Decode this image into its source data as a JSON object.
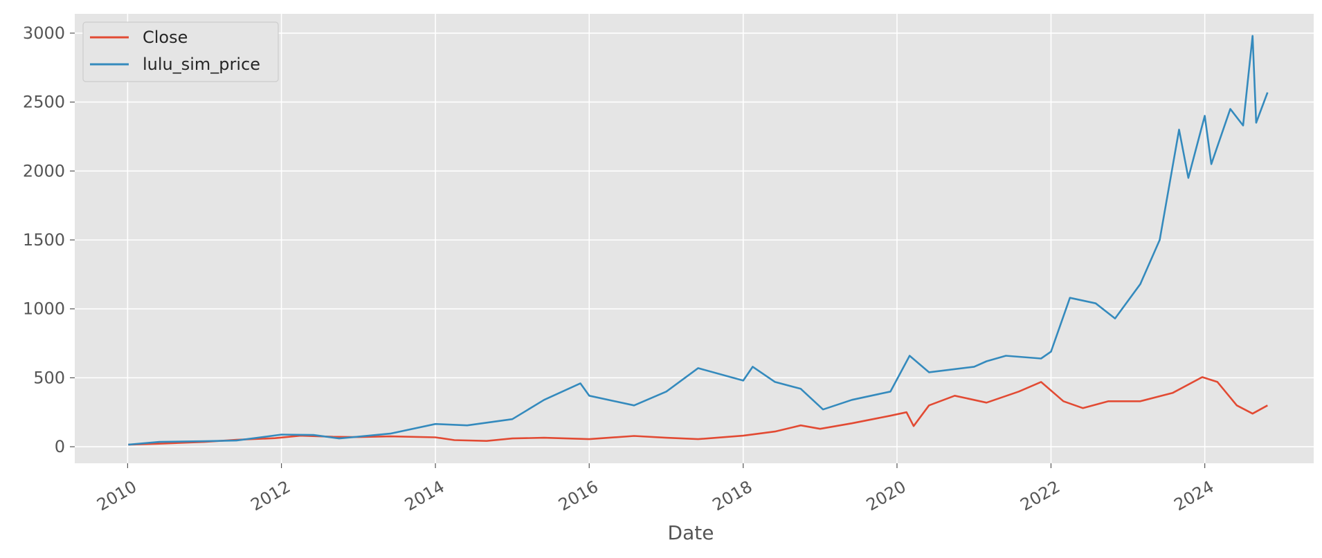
{
  "chart_data": {
    "type": "line",
    "title": "",
    "xlabel": "Date",
    "ylabel": "",
    "x_type": "date",
    "xlim": [
      "2009-04-25",
      "2025-06-01"
    ],
    "ylim": [
      -120,
      3140
    ],
    "x_ticks": [
      "2010",
      "2012",
      "2014",
      "2016",
      "2018",
      "2020",
      "2022",
      "2024"
    ],
    "y_ticks": [
      0,
      500,
      1000,
      1500,
      2000,
      2500,
      3000
    ],
    "grid": true,
    "legend_position": "top-left",
    "series": [
      {
        "name": "Close",
        "color": "#E24A33",
        "points": [
          [
            "2010-01-04",
            15
          ],
          [
            "2010-06-01",
            22
          ],
          [
            "2011-01-01",
            35
          ],
          [
            "2011-06-01",
            50
          ],
          [
            "2011-12-01",
            62
          ],
          [
            "2012-04-01",
            80
          ],
          [
            "2012-09-01",
            72
          ],
          [
            "2013-01-01",
            70
          ],
          [
            "2013-06-01",
            75
          ],
          [
            "2014-01-01",
            68
          ],
          [
            "2014-04-01",
            48
          ],
          [
            "2014-09-01",
            42
          ],
          [
            "2015-01-01",
            60
          ],
          [
            "2015-06-01",
            65
          ],
          [
            "2016-01-01",
            55
          ],
          [
            "2016-08-01",
            78
          ],
          [
            "2017-01-01",
            65
          ],
          [
            "2017-06-01",
            55
          ],
          [
            "2018-01-01",
            80
          ],
          [
            "2018-06-01",
            110
          ],
          [
            "2018-10-01",
            155
          ],
          [
            "2019-01-01",
            130
          ],
          [
            "2019-06-01",
            170
          ],
          [
            "2019-12-01",
            225
          ],
          [
            "2020-02-15",
            250
          ],
          [
            "2020-03-20",
            150
          ],
          [
            "2020-06-01",
            300
          ],
          [
            "2020-10-01",
            370
          ],
          [
            "2021-03-01",
            320
          ],
          [
            "2021-08-01",
            400
          ],
          [
            "2021-11-15",
            470
          ],
          [
            "2022-03-01",
            330
          ],
          [
            "2022-06-01",
            280
          ],
          [
            "2022-10-01",
            330
          ],
          [
            "2023-03-01",
            330
          ],
          [
            "2023-08-01",
            390
          ],
          [
            "2023-12-20",
            505
          ],
          [
            "2024-03-01",
            470
          ],
          [
            "2024-06-01",
            300
          ],
          [
            "2024-08-15",
            240
          ],
          [
            "2024-10-25",
            300
          ]
        ]
      },
      {
        "name": "lulu_sim_price",
        "color": "#348ABD",
        "points": [
          [
            "2010-01-04",
            15
          ],
          [
            "2010-06-01",
            35
          ],
          [
            "2011-01-01",
            40
          ],
          [
            "2011-06-01",
            45
          ],
          [
            "2012-01-01",
            88
          ],
          [
            "2012-06-01",
            85
          ],
          [
            "2012-10-01",
            60
          ],
          [
            "2013-06-01",
            95
          ],
          [
            "2014-01-01",
            165
          ],
          [
            "2014-06-01",
            155
          ],
          [
            "2015-01-01",
            200
          ],
          [
            "2015-06-01",
            340
          ],
          [
            "2015-11-20",
            460
          ],
          [
            "2016-01-01",
            370
          ],
          [
            "2016-08-01",
            300
          ],
          [
            "2017-01-01",
            400
          ],
          [
            "2017-06-01",
            570
          ],
          [
            "2018-01-01",
            480
          ],
          [
            "2018-02-15",
            580
          ],
          [
            "2018-06-01",
            470
          ],
          [
            "2018-10-01",
            420
          ],
          [
            "2019-01-15",
            270
          ],
          [
            "2019-06-01",
            340
          ],
          [
            "2019-12-01",
            400
          ],
          [
            "2020-03-01",
            660
          ],
          [
            "2020-06-01",
            540
          ],
          [
            "2021-01-01",
            580
          ],
          [
            "2021-03-01",
            620
          ],
          [
            "2021-06-01",
            660
          ],
          [
            "2021-11-15",
            640
          ],
          [
            "2022-01-01",
            690
          ],
          [
            "2022-04-01",
            1080
          ],
          [
            "2022-08-01",
            1040
          ],
          [
            "2022-11-01",
            930
          ],
          [
            "2023-03-01",
            1180
          ],
          [
            "2023-06-01",
            1500
          ],
          [
            "2023-09-01",
            2300
          ],
          [
            "2023-10-15",
            1950
          ],
          [
            "2024-01-01",
            2400
          ],
          [
            "2024-02-01",
            2050
          ],
          [
            "2024-05-01",
            2450
          ],
          [
            "2024-07-01",
            2330
          ],
          [
            "2024-08-15",
            2980
          ],
          [
            "2024-09-01",
            2350
          ],
          [
            "2024-10-25",
            2570
          ]
        ]
      }
    ]
  }
}
